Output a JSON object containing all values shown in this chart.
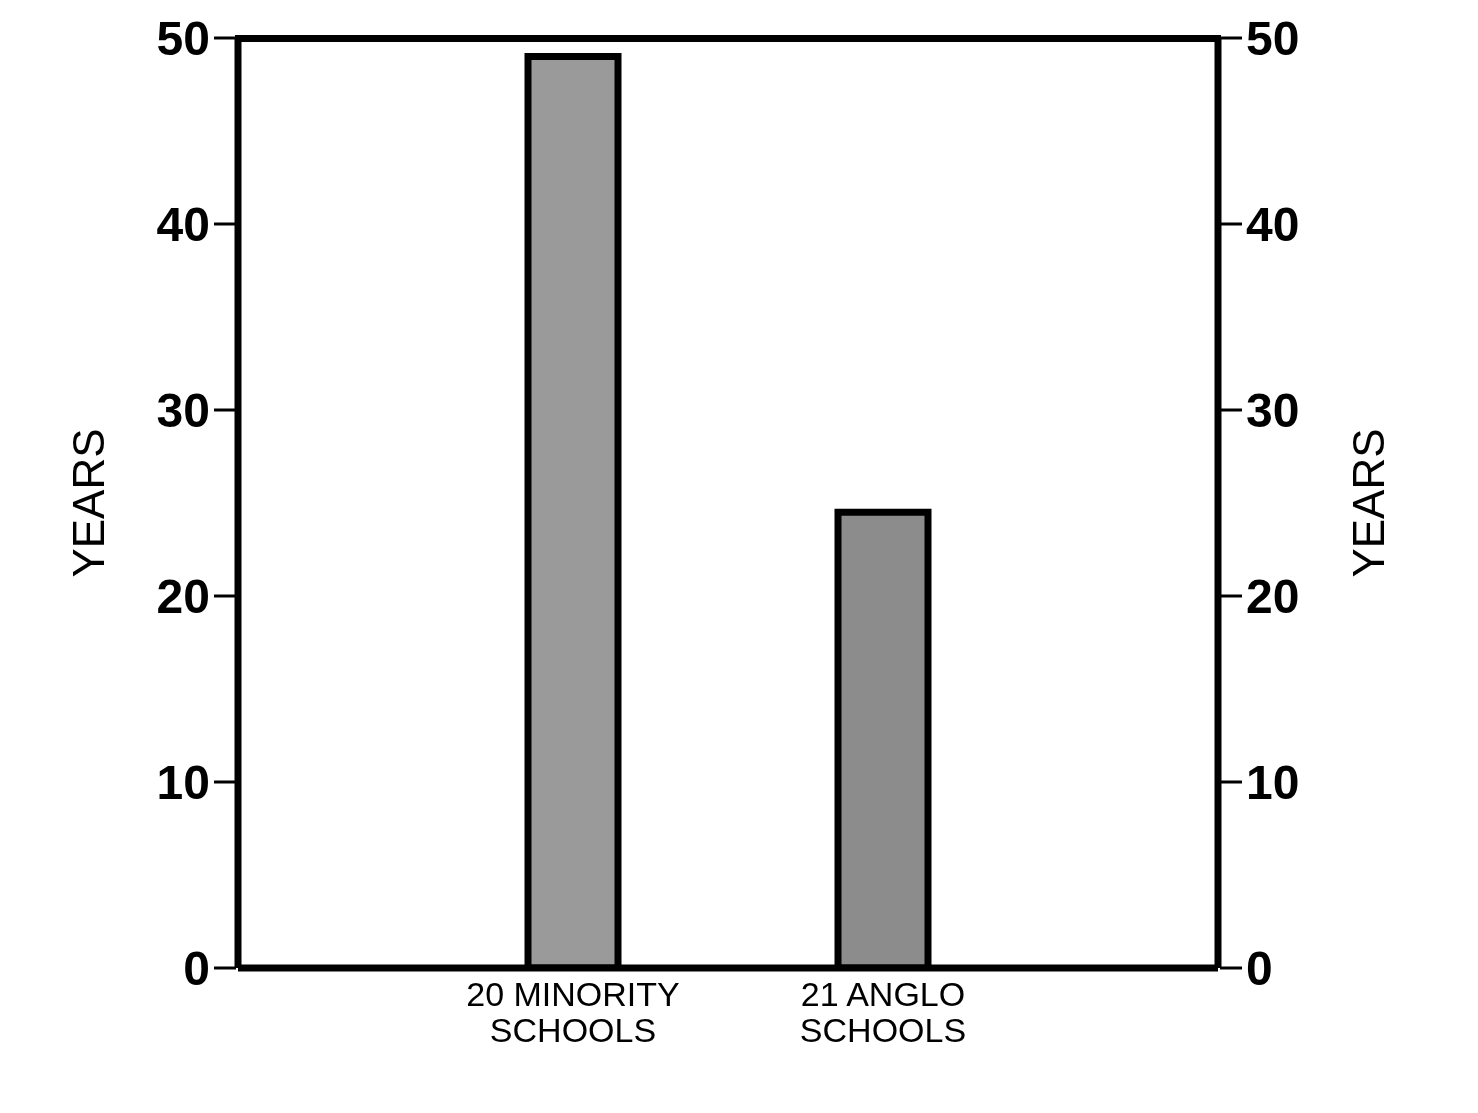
{
  "chart_data": {
    "type": "bar",
    "ylabel": "YEARS",
    "y2label": "YEARS",
    "categories": [
      "20 MINORITY SCHOOLS",
      "21 ANGLO SCHOOLS"
    ],
    "values": [
      49,
      24.5
    ],
    "colors": [
      "#9a9a9a",
      "#8c8c8c"
    ],
    "ylim": [
      0,
      50
    ],
    "yticks": [
      0,
      10,
      20,
      30,
      40,
      50
    ],
    "y2lim": [
      0,
      50
    ],
    "y2ticks": [
      0,
      10,
      20,
      30,
      40,
      50
    ],
    "grid": false,
    "legend": false
  }
}
